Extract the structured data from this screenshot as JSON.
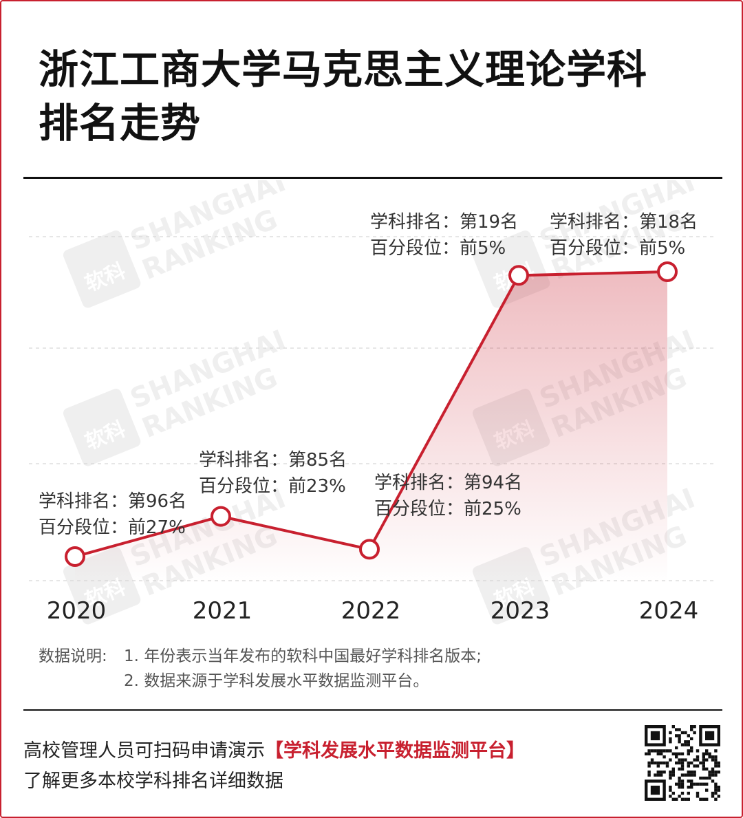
{
  "title_line1": "浙江工商大学马克思主义理论学科",
  "title_line2": "排名走势",
  "chart_data": {
    "type": "line",
    "x": [
      "2020",
      "2021",
      "2022",
      "2023",
      "2024"
    ],
    "y_axis_inverted": true,
    "ylim": [
      100,
      15
    ],
    "grid": true,
    "series": [
      {
        "values": [
          96,
          85,
          94,
          19,
          18
        ]
      }
    ],
    "annotations": [
      {
        "line1": "学科排名：第96名",
        "line2": "百分段位：前27%"
      },
      {
        "line1": "学科排名：第85名",
        "line2": "百分段位：前23%"
      },
      {
        "line1": "学科排名：第94名",
        "line2": "百分段位：前25%"
      },
      {
        "line1": "学科排名：第19名",
        "line2": "百分段位：前5%"
      },
      {
        "line1": "学科排名：第18名",
        "line2": "百分段位：前5%"
      }
    ],
    "colors": {
      "line": "#c8202f",
      "grid": "#d6d6d6",
      "fill": "#c8202f"
    }
  },
  "watermark": {
    "line1": "SHANGHAI",
    "line2": "RANKING",
    "logo": "软科"
  },
  "notes": {
    "label": "数据说明:",
    "item1": "1. 年份表示当年发布的软科中国最好学科排名版本;",
    "item2": "2. 数据来源于学科发展水平数据监测平台。"
  },
  "cta": {
    "text": "高校管理人员可扫码申请演示",
    "highlight": "【学科发展水平数据监测平台】",
    "line2": "了解更多本校学科排名详细数据"
  },
  "qr_icon": "qr-code-icon"
}
